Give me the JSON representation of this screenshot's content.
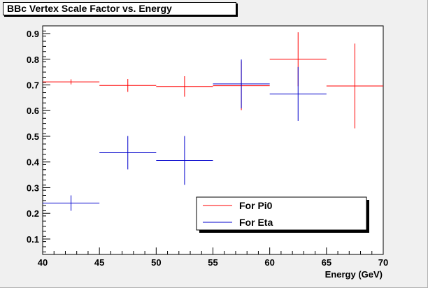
{
  "chart_data": {
    "type": "scatter",
    "title": "BBc Vertex Scale Factor vs. Energy",
    "xlabel": "Energy (GeV)",
    "ylabel": "",
    "xlim": [
      40,
      70
    ],
    "ylim": [
      0.04,
      0.93
    ],
    "xticks": [
      40,
      45,
      50,
      55,
      60,
      65,
      70
    ],
    "xtick_labels": [
      "40",
      "45",
      "50",
      "55",
      "60",
      "65",
      "70"
    ],
    "yticks": [
      0.1,
      0.2,
      0.3,
      0.4,
      0.5,
      0.6,
      0.7,
      0.8,
      0.9
    ],
    "ytick_labels": [
      "0.1",
      "0.2",
      "0.3",
      "0.4",
      "0.5",
      "0.6",
      "0.7",
      "0.8",
      "0.9"
    ],
    "grid": false,
    "legend_position": "bottom-right",
    "series": [
      {
        "name": "For Pi0",
        "color": "#ff0000",
        "points": [
          {
            "x": 42.5,
            "xerr": 2.5,
            "y": 0.712,
            "yerr": 0.01
          },
          {
            "x": 47.5,
            "xerr": 2.5,
            "y": 0.698,
            "yerr": 0.025
          },
          {
            "x": 52.5,
            "xerr": 2.5,
            "y": 0.694,
            "yerr": 0.04
          },
          {
            "x": 57.5,
            "xerr": 2.5,
            "y": 0.697,
            "yerr": 0.095
          },
          {
            "x": 62.5,
            "xerr": 2.5,
            "y": 0.8,
            "yerr": 0.105
          },
          {
            "x": 67.5,
            "xerr": 2.5,
            "y": 0.696,
            "yerr": 0.165
          }
        ]
      },
      {
        "name": "For Eta",
        "color": "#0000cc",
        "points": [
          {
            "x": 42.5,
            "xerr": 2.5,
            "y": 0.24,
            "yerr": 0.03
          },
          {
            "x": 47.5,
            "xerr": 2.5,
            "y": 0.436,
            "yerr": 0.065
          },
          {
            "x": 52.5,
            "xerr": 2.5,
            "y": 0.406,
            "yerr": 0.095
          },
          {
            "x": 57.5,
            "xerr": 2.5,
            "y": 0.704,
            "yerr": 0.095
          },
          {
            "x": 62.5,
            "xerr": 2.5,
            "y": 0.665,
            "yerr": 0.105
          }
        ]
      }
    ]
  }
}
